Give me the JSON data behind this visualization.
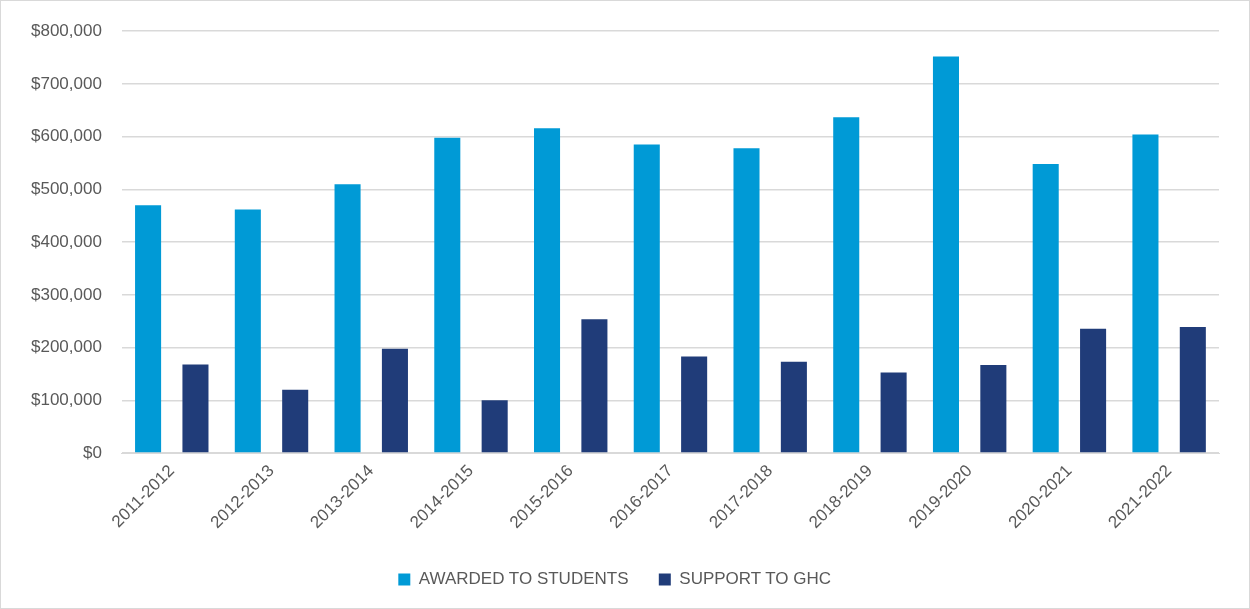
{
  "chart_data": {
    "type": "bar",
    "categories": [
      "2011-2012",
      "2012-2013",
      "2013-2014",
      "2014-2015",
      "2015-2016",
      "2016-2017",
      "2017-2018",
      "2018-2019",
      "2019-2020",
      "2020-2021",
      "2021-2022"
    ],
    "series": [
      {
        "name": "AWARDED TO STUDENTS",
        "color": "#009ad6",
        "values": [
          470000,
          462000,
          510000,
          598000,
          616000,
          585000,
          578000,
          637000,
          752000,
          548000,
          604000
        ]
      },
      {
        "name": "SUPPORT TO GHC",
        "color": "#203c79",
        "values": [
          168000,
          120000,
          198000,
          100000,
          254000,
          183000,
          173000,
          153000,
          167000,
          236000,
          239000
        ]
      }
    ],
    "ylim": [
      0,
      800000
    ],
    "yticks": [
      {
        "value": 0,
        "label": "$0"
      },
      {
        "value": 100000,
        "label": "$100,000"
      },
      {
        "value": 200000,
        "label": "$200,000"
      },
      {
        "value": 300000,
        "label": "$300,000"
      },
      {
        "value": 400000,
        "label": "$400,000"
      },
      {
        "value": 500000,
        "label": "$500,000"
      },
      {
        "value": 600000,
        "label": "$600,000"
      },
      {
        "value": 700000,
        "label": "$700,000"
      },
      {
        "value": 800000,
        "label": "$800,000"
      }
    ],
    "grid": "y",
    "legend": "bottom"
  }
}
